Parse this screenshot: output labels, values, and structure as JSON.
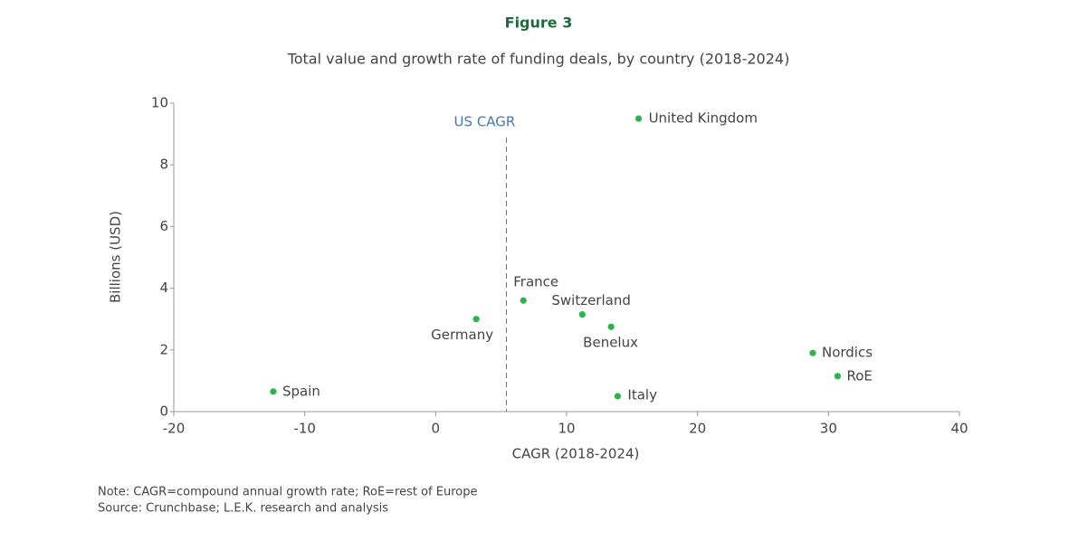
{
  "chart_data": {
    "type": "scatter",
    "figure_label": "Figure 3",
    "title": "Total value and growth rate of funding deals, by country (2018-2024)",
    "x_label": "CAGR (2018-2024)",
    "y_label": "Billions (USD)",
    "note": "Note: CAGR=compound annual growth rate; RoE=rest of Europe",
    "source": "Source: Crunchbase; L.E.K. research and analysis",
    "color": "#2db34a",
    "labels": [
      "United Kingdom",
      "France",
      "Switzerland",
      "Benelux",
      "Germany",
      "Nordics",
      "RoE",
      "Italy",
      "Spain"
    ],
    "x": [
      15.5,
      6.7,
      11.2,
      13.4,
      3.1,
      28.8,
      30.7,
      13.9,
      -12.4
    ],
    "values": [
      9.5,
      3.6,
      3.15,
      2.75,
      3.0,
      1.9,
      1.15,
      0.5,
      0.65
    ],
    "reference_line": {
      "label": "US CAGR",
      "x": 5.4,
      "color": "#4a76a8"
    },
    "xlim": [
      -20,
      40
    ],
    "xticks": [
      -20,
      -10,
      0,
      10,
      20,
      30,
      40
    ],
    "ylim": [
      0,
      10
    ],
    "yticks": [
      0,
      2,
      4,
      6,
      8,
      10
    ],
    "grid": false
  }
}
